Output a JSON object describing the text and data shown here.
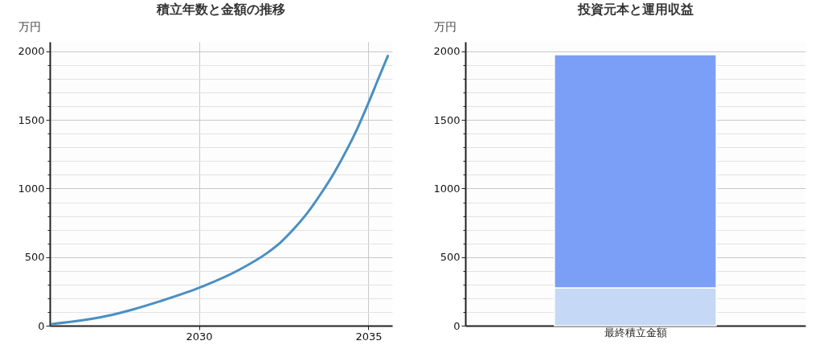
{
  "chart_data": [
    {
      "type": "line",
      "title": "積立年数と金額の推移",
      "ylabel": "万円",
      "series": [
        {
          "color": "#4a8fc2",
          "x": [
            2025.66,
            2027.27,
            2028.06,
            2028.85,
            2030,
            2031.22,
            2032.01,
            2032.41,
            2032.8,
            2033.2,
            2033.59,
            2033.99,
            2034.38,
            2034.69,
            2035,
            2035.29,
            2035.57
          ],
          "values": [
            12,
            70,
            119,
            178,
            276,
            412,
            530,
            608,
            706,
            823,
            960,
            1116,
            1292,
            1448,
            1625,
            1800,
            1967
          ]
        }
      ],
      "xlim": [
        2025.6,
        2035.7
      ],
      "xticks": [
        2030,
        2035
      ],
      "ylim": [
        0,
        2070
      ],
      "yticks": [
        0,
        {
          "value": 100,
          "label": null
        },
        {
          "value": 200,
          "label": null
        },
        {
          "value": 300,
          "label": null
        },
        {
          "value": 400,
          "label": null
        },
        500,
        {
          "value": 600,
          "label": null
        },
        {
          "value": 700,
          "label": null
        },
        {
          "value": 800,
          "label": null
        },
        {
          "value": 900,
          "label": null
        },
        1000,
        {
          "value": 1100,
          "label": null
        },
        {
          "value": 1200,
          "label": null
        },
        {
          "value": 1300,
          "label": null
        },
        {
          "value": 1400,
          "label": null
        },
        1500,
        {
          "value": 1600,
          "label": null
        },
        {
          "value": 1700,
          "label": null
        },
        {
          "value": 1800,
          "label": null
        },
        {
          "value": 1900,
          "label": null
        },
        2000
      ],
      "grid": true
    },
    {
      "type": "bar",
      "title": "投資元本と運用収益",
      "ylabel": "万円",
      "stacked": true,
      "categories": [
        "最終積立金額"
      ],
      "series": [
        {
          "color": "#c5d8f5",
          "values": [
            276
          ]
        },
        {
          "color": "#7b9ff7",
          "values": [
            1700
          ]
        }
      ],
      "ylim": [
        0,
        2070
      ],
      "yticks": [
        0,
        {
          "value": 100,
          "label": null
        },
        {
          "value": 200,
          "label": null
        },
        {
          "value": 300,
          "label": null
        },
        {
          "value": 400,
          "label": null
        },
        500,
        {
          "value": 600,
          "label": null
        },
        {
          "value": 700,
          "label": null
        },
        {
          "value": 800,
          "label": null
        },
        {
          "value": 900,
          "label": null
        },
        1000,
        {
          "value": 1100,
          "label": null
        },
        {
          "value": 1200,
          "label": null
        },
        {
          "value": 1300,
          "label": null
        },
        {
          "value": 1400,
          "label": null
        },
        1500,
        {
          "value": 1600,
          "label": null
        },
        {
          "value": 1700,
          "label": null
        },
        {
          "value": 1800,
          "label": null
        },
        {
          "value": 1900,
          "label": null
        },
        2000
      ],
      "grid": true
    }
  ]
}
